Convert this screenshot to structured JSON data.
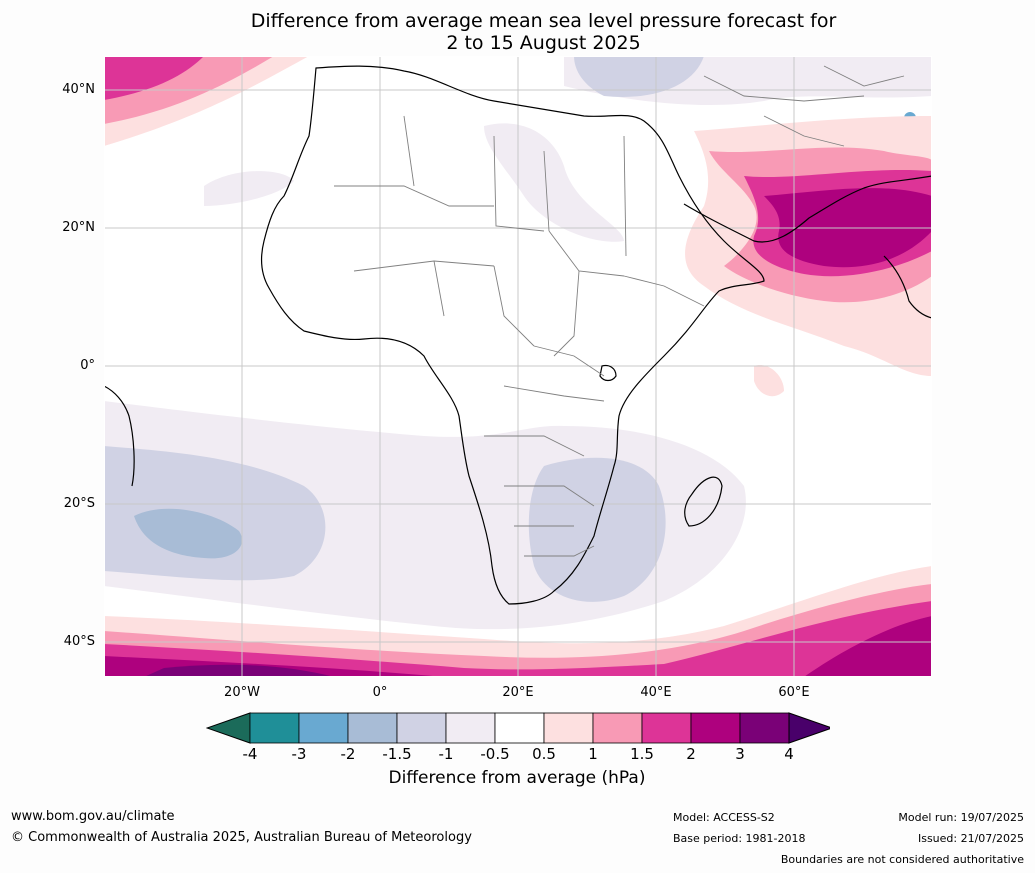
{
  "title": {
    "line1": "Difference from average mean sea level pressure forecast for",
    "line2": "2 to 15 August 2025"
  },
  "map": {
    "lat_labels": [
      "40°N",
      "20°N",
      "0°",
      "20°S",
      "40°S"
    ],
    "lon_labels": [
      "20°W",
      "0°",
      "20°E",
      "40°E",
      "60°E"
    ]
  },
  "colorbar": {
    "ticks": [
      "-4",
      "-3",
      "-2",
      "-1.5",
      "-1",
      "-0.5",
      "0.5",
      "1",
      "1.5",
      "2",
      "3",
      "4"
    ],
    "colors": [
      "#1b6b5a",
      "#1f8f98",
      "#69a9d1",
      "#a8bcd6",
      "#d0d2e4",
      "#f1ecf3",
      "#ffffff",
      "#fde0e0",
      "#f89ab5",
      "#dd3497",
      "#ae017e",
      "#7a0177",
      "#49006a"
    ],
    "label": "Difference from average (hPa)"
  },
  "footer": {
    "website": "www.bom.gov.au/climate",
    "copyright": "© Commonwealth of Australia 2025, Australian Bureau of Meteorology",
    "model": "Model: ACCESS-S2",
    "base_period": "Base period: 1981-2018",
    "model_run": "Model run: 19/07/2025",
    "issued": "Issued: 21/07/2025",
    "disclaimer": "Boundaries are not considered authoritative"
  }
}
